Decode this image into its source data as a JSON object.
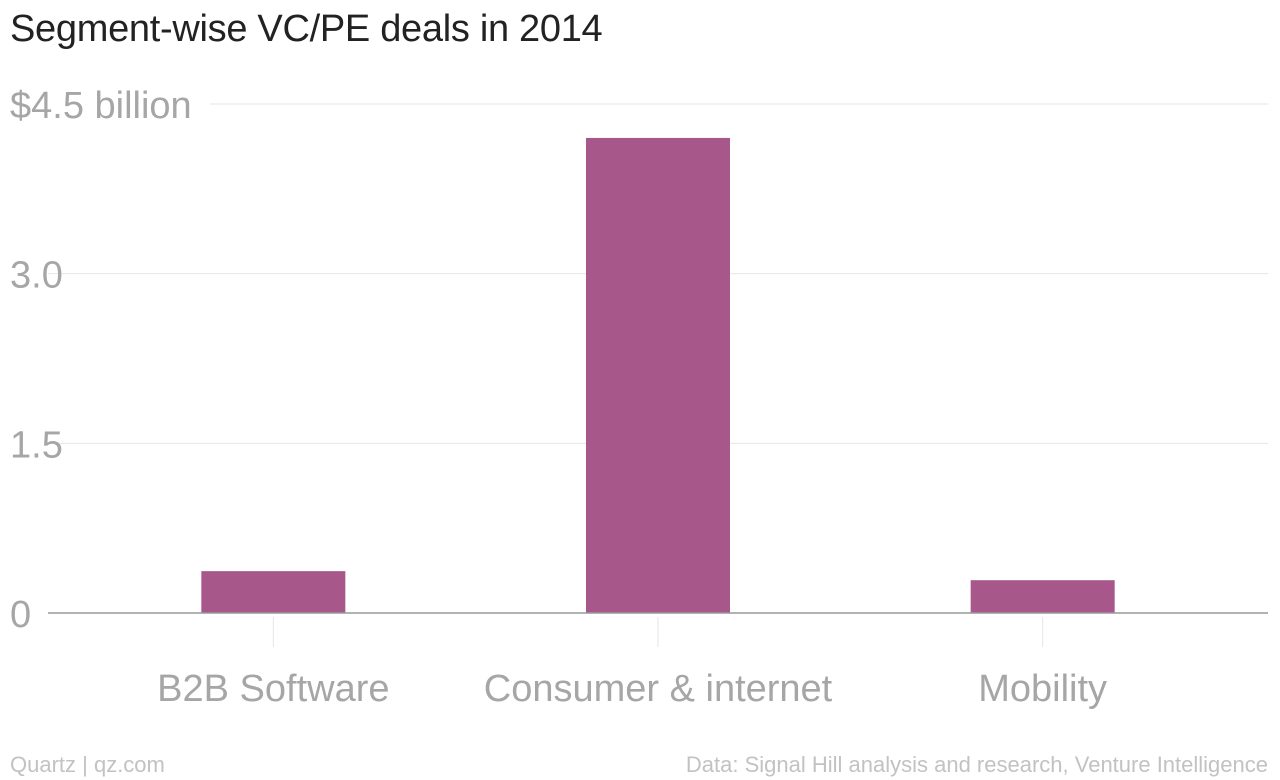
{
  "chart_data": {
    "type": "bar",
    "title": "Segment-wise VC/PE deals in 2014",
    "categories": [
      "B2B Software",
      "Consumer & internet",
      "Mobility"
    ],
    "values": [
      0.37,
      4.2,
      0.29
    ],
    "y_ticks": [
      {
        "value": 4.5,
        "label": "$4.5 billion"
      },
      {
        "value": 3.0,
        "label": "3.0"
      },
      {
        "value": 1.5,
        "label": "1.5"
      },
      {
        "value": 0,
        "label": "0"
      }
    ],
    "ylim": [
      0,
      4.5
    ],
    "xlabel": "",
    "ylabel": "",
    "grid": true,
    "bar_color": "#a8578a",
    "grid_color": "#e6e6e6",
    "axis_color": "#999999",
    "tick_label_color": "#a6a6a6"
  },
  "footer": {
    "source_left": "Quartz | qz.com",
    "source_right": "Data: Signal Hill analysis and research, Venture Intelligence"
  }
}
